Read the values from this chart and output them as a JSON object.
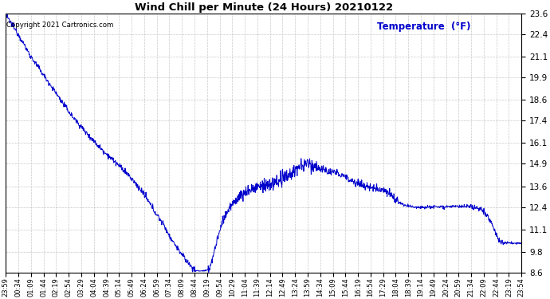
{
  "title": "Wind Chill per Minute (24 Hours) 20210122",
  "ylabel": "Temperature  (°F)",
  "copyright_text": "Copyright 2021 Cartronics.com",
  "line_color": "#0000cc",
  "ylabel_color": "#0000cc",
  "background_color": "#ffffff",
  "grid_color": "#bbbbbb",
  "ylim": [
    8.6,
    23.6
  ],
  "yticks": [
    8.6,
    9.8,
    11.1,
    12.4,
    13.6,
    14.9,
    16.1,
    17.4,
    18.6,
    19.9,
    21.1,
    22.4,
    23.6
  ],
  "x_tick_labels": [
    "23:59",
    "00:34",
    "01:09",
    "01:44",
    "02:19",
    "02:54",
    "03:29",
    "04:04",
    "04:39",
    "05:14",
    "05:49",
    "06:24",
    "06:59",
    "07:34",
    "08:09",
    "08:44",
    "09:19",
    "09:54",
    "10:29",
    "11:04",
    "11:39",
    "12:14",
    "12:49",
    "13:24",
    "13:59",
    "14:34",
    "15:09",
    "15:44",
    "16:19",
    "16:54",
    "17:29",
    "18:04",
    "18:39",
    "19:14",
    "19:49",
    "20:24",
    "20:59",
    "21:34",
    "22:09",
    "22:44",
    "23:19",
    "23:54"
  ],
  "n_points": 1440
}
